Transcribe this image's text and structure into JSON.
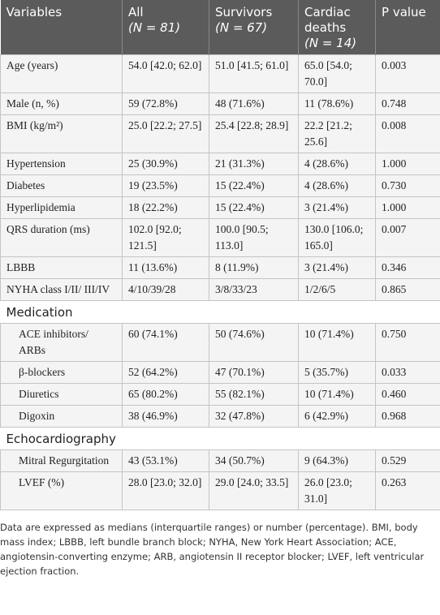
{
  "table": {
    "header": [
      {
        "label": "Variables"
      },
      {
        "label": "All",
        "n": "(N = 81)"
      },
      {
        "label": "Survivors",
        "n": "(N = 67)"
      },
      {
        "label": "Cardiac deaths",
        "n": "(N = 14)"
      },
      {
        "label": "P value"
      }
    ],
    "groups": [
      {
        "rows": [
          [
            "Age (years)",
            "54.0 [42.0; 62.0]",
            "51.0 [41.5; 61.0]",
            "65.0 [54.0; 70.0]",
            "0.003"
          ],
          [
            "Male (n, %)",
            "59 (72.8%)",
            "48 (71.6%)",
            "11 (78.6%)",
            "0.748"
          ],
          [
            "BMI (kg/m²)",
            "25.0 [22.2; 27.5]",
            "25.4 [22.8; 28.9]",
            "22.2 [21.2; 25.6]",
            "0.008"
          ],
          [
            "Hypertension",
            "25 (30.9%)",
            "21 (31.3%)",
            "4 (28.6%)",
            "1.000"
          ],
          [
            "Diabetes",
            "19 (23.5%)",
            "15 (22.4%)",
            "4 (28.6%)",
            "0.730"
          ],
          [
            "Hyperlipidemia",
            "18 (22.2%)",
            "15 (22.4%)",
            "3 (21.4%)",
            "1.000"
          ],
          [
            "QRS duration (ms)",
            "102.0 [92.0; 121.5]",
            "100.0 [90.5; 113.0]",
            "130.0 [106.0; 165.0]",
            "0.007"
          ],
          [
            "LBBB",
            "11 (13.6%)",
            "8 (11.9%)",
            "3 (21.4%)",
            "0.346"
          ],
          [
            "NYHA class I/II/ III/IV",
            "4/10/39/28",
            "3/8/33/23",
            "1/2/6/5",
            "0.865"
          ]
        ]
      },
      {
        "title": "Medication",
        "rows": [
          [
            "ACE inhibitors/ ARBs",
            "60 (74.1%)",
            "50 (74.6%)",
            "10 (71.4%)",
            "0.750"
          ],
          [
            "β-blockers",
            "52 (64.2%)",
            "47 (70.1%)",
            "5 (35.7%)",
            "0.033"
          ],
          [
            "Diuretics",
            "65 (80.2%)",
            "55 (82.1%)",
            "10 (71.4%)",
            "0.460"
          ],
          [
            "Digoxin",
            "38 (46.9%)",
            "32 (47.8%)",
            "6 (42.9%)",
            "0.968"
          ]
        ]
      },
      {
        "title": "Echocardiography",
        "rows": [
          [
            "Mitral Regurgitation",
            "43 (53.1%)",
            "34 (50.7%)",
            "9 (64.3%)",
            "0.529"
          ],
          [
            "LVEF (%)",
            "28.0 [23.0; 32.0]",
            "29.0 [24.0; 33.5]",
            "26.0 [23.0; 31.0]",
            "0.263"
          ]
        ]
      }
    ]
  },
  "footnote": "Data are expressed as medians (interquartile ranges) or number (percentage). BMI, body mass index; LBBB, left bundle branch block; NYHA, New York Heart Association; ACE, angiotensin-converting enzyme; ARB, angiotensin II receptor blocker; LVEF, left ventricular ejection fraction."
}
